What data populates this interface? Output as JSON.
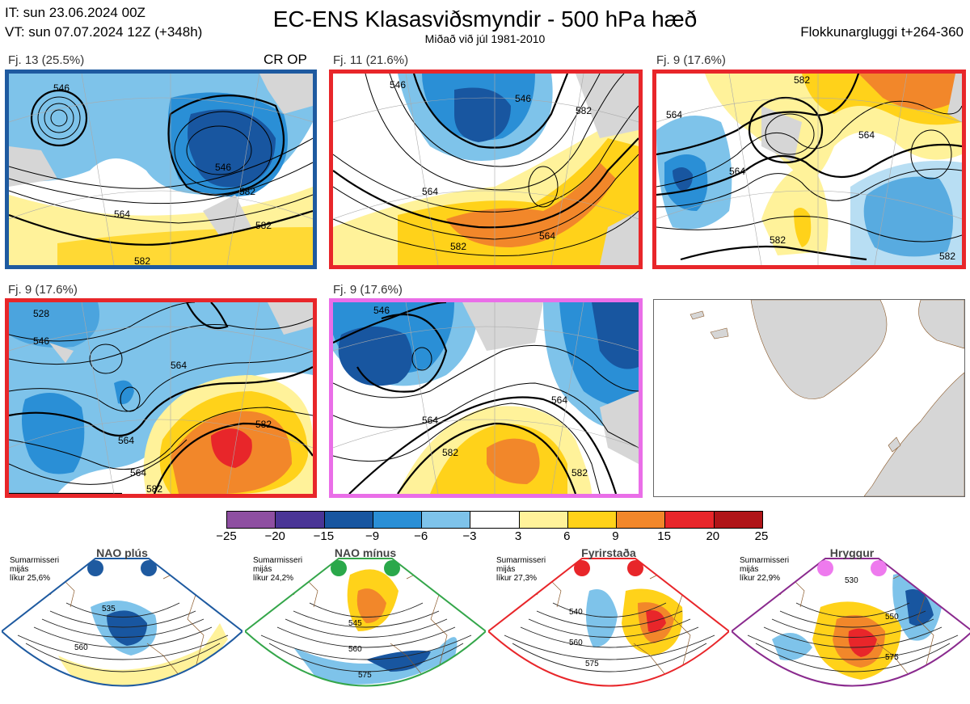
{
  "header": {
    "init_time": "IT: sun 23.06.2024 00Z",
    "valid_time": "VT: sun 07.07.2024 12Z  (+348h)",
    "title": "EC-ENS Klasasviðsmyndir - 500 hPa hæð",
    "subtitle": "Miðað við júl 1981-2010",
    "window": "Flokkunargluggi t+264-360",
    "cr_op": "CR OP"
  },
  "panels": [
    {
      "label": "Fj. 13 (25.5%)",
      "border": "#1e5aa0",
      "contours": [
        "546",
        "546",
        "564",
        "582",
        "582",
        "582"
      ]
    },
    {
      "label": "Fj. 11 (21.6%)",
      "border": "#e8262a",
      "contours": [
        "546",
        "546",
        "564",
        "564",
        "582",
        "582"
      ]
    },
    {
      "label": "Fj. 9 (17.6%)",
      "border": "#e8262a",
      "contours": [
        "564",
        "564",
        "564",
        "582",
        "582",
        "582"
      ]
    },
    {
      "label": "Fj. 9 (17.6%)",
      "border": "#e8262a",
      "contours": [
        "528",
        "546",
        "564",
        "564",
        "564",
        "582",
        "582"
      ]
    },
    {
      "label": "Fj. 9 (17.6%)",
      "border": "#ea6ee8",
      "contours": [
        "546",
        "564",
        "564",
        "582",
        "582"
      ]
    }
  ],
  "colorbar": {
    "ticks": [
      "−25",
      "−20",
      "−15",
      "−9",
      "−6",
      "−3",
      "3",
      "6",
      "9",
      "15",
      "20",
      "25"
    ],
    "colors": [
      "#8e4fa1",
      "#4a3596",
      "#1856a0",
      "#2a8fd6",
      "#7ec3ea",
      "#ffffff",
      "#fff29a",
      "#ffd21a",
      "#f2872a",
      "#e8262a",
      "#b01418"
    ]
  },
  "regimes": [
    {
      "name": "NAO plús",
      "season": "Sumarmisseri",
      "mean": "mijás",
      "likelihood": "líkur 25,6%",
      "color": "#1e5aa0",
      "dot_color": "#1e5aa0",
      "contours": [
        "535",
        "560"
      ]
    },
    {
      "name": "NAO mínus",
      "season": "Sumarmisseri",
      "mean": "mijás",
      "likelihood": "líkur 24,2%",
      "color": "#34a64a",
      "dot_color": "#2aa84a",
      "contours": [
        "545",
        "560",
        "575"
      ]
    },
    {
      "name": "Fyrirstaða",
      "season": "Sumarmisseri",
      "mean": "mijás",
      "likelihood": "líkur 27,3%",
      "color": "#e8262a",
      "dot_color": "#e8262a",
      "contours": [
        "540",
        "560",
        "575"
      ]
    },
    {
      "name": "Hryggur",
      "season": "Sumarmisseri",
      "mean": "mijás",
      "likelihood": "líkur 22,9%",
      "color": "#8a2a8e",
      "dot_color": "#ee7aee",
      "contours": [
        "530",
        "550",
        "575"
      ]
    }
  ]
}
